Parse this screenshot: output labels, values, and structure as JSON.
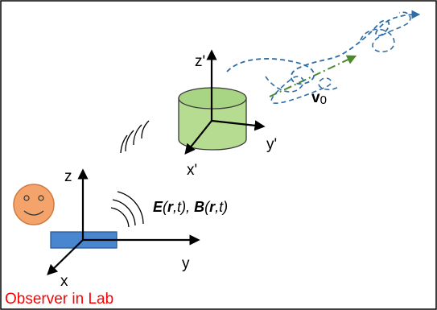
{
  "labels": {
    "lab_x": "x",
    "lab_y": "y",
    "lab_z": "z",
    "moving_x": "x'",
    "moving_y": "y'",
    "moving_z": "z'",
    "velocity_symbol": "v",
    "velocity_subscript": "0",
    "field_E": "E",
    "field_B": "B",
    "field_r": "r",
    "field_t": "t",
    "observer_caption": "Observer in Lab"
  },
  "colors": {
    "frame_border": "#000000",
    "cylinder_fill": "#b6dc92",
    "cylinder_stroke": "#3a3a3a",
    "box_fill": "#4a86d0",
    "box_stroke": "#2a5a96",
    "face_fill": "#f4a46b",
    "face_stroke": "#d07a40",
    "trajectory": "#2f6da6",
    "velocity_arrow": "#4a8a2e",
    "caption": "#ff0000"
  }
}
